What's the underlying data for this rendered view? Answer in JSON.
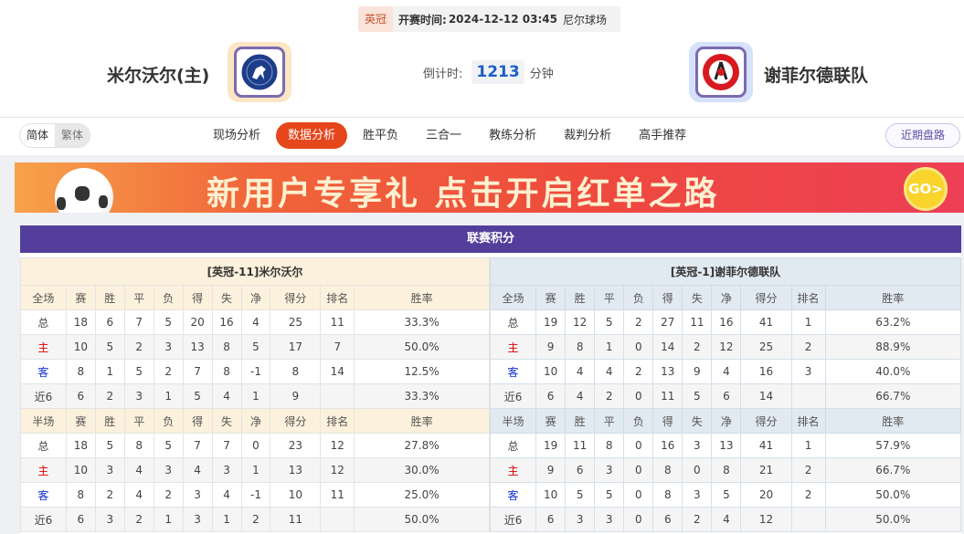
{
  "match": {
    "league": "英冠",
    "kickoff_label": "开赛时间:",
    "kickoff": "2024-12-12 03:45",
    "venue": "尼尔球场"
  },
  "home": {
    "name": "米尔沃尔(主)",
    "logo": "millwall-lion-crest"
  },
  "away": {
    "name": "谢菲尔德联队",
    "logo": "sheffield-united-crest"
  },
  "countdown": {
    "label": "倒计时:",
    "value": "1213",
    "unit": "分钟"
  },
  "lang": {
    "simplified": "简体",
    "traditional": "繁体"
  },
  "tabs": [
    "现场分析",
    "数据分析",
    "胜平负",
    "三合一",
    "教练分析",
    "裁判分析",
    "高手推荐"
  ],
  "active_tab": "数据分析",
  "recent_button": "近期盘路",
  "banner": {
    "text": "新用户专享礼 点击开启红单之路",
    "go": "GO>"
  },
  "colors": {
    "accent": "#e5461c",
    "panel_header": "#533f9b"
  },
  "standings": {
    "title": "联赛积分",
    "columns": [
      "赛",
      "胜",
      "平",
      "负",
      "得",
      "失",
      "净",
      "得分",
      "排名",
      "胜率"
    ],
    "tables": [
      {
        "team_label": "[英冠-11]米尔沃尔",
        "full": {
          "label": "全场",
          "rows": [
            [
              "总",
              "18",
              "6",
              "7",
              "5",
              "20",
              "16",
              "4",
              "25",
              "11",
              "33.3%"
            ],
            [
              "主",
              "10",
              "5",
              "2",
              "3",
              "13",
              "8",
              "5",
              "17",
              "7",
              "50.0%"
            ],
            [
              "客",
              "8",
              "1",
              "5",
              "2",
              "7",
              "8",
              "-1",
              "8",
              "14",
              "12.5%"
            ],
            [
              "近6",
              "6",
              "2",
              "3",
              "1",
              "5",
              "4",
              "1",
              "9",
              "",
              "33.3%"
            ]
          ]
        },
        "half": {
          "label": "半场",
          "rows": [
            [
              "总",
              "18",
              "5",
              "8",
              "5",
              "7",
              "7",
              "0",
              "23",
              "12",
              "27.8%"
            ],
            [
              "主",
              "10",
              "3",
              "4",
              "3",
              "4",
              "3",
              "1",
              "13",
              "12",
              "30.0%"
            ],
            [
              "客",
              "8",
              "2",
              "4",
              "2",
              "3",
              "4",
              "-1",
              "10",
              "11",
              "25.0%"
            ],
            [
              "近6",
              "6",
              "3",
              "2",
              "1",
              "3",
              "1",
              "2",
              "11",
              "",
              "50.0%"
            ]
          ]
        }
      },
      {
        "team_label": "[英冠-1]谢菲尔德联队",
        "full": {
          "label": "全场",
          "rows": [
            [
              "总",
              "19",
              "12",
              "5",
              "2",
              "27",
              "11",
              "16",
              "41",
              "1",
              "63.2%"
            ],
            [
              "主",
              "9",
              "8",
              "1",
              "0",
              "14",
              "2",
              "12",
              "25",
              "2",
              "88.9%"
            ],
            [
              "客",
              "10",
              "4",
              "4",
              "2",
              "13",
              "9",
              "4",
              "16",
              "3",
              "40.0%"
            ],
            [
              "近6",
              "6",
              "4",
              "2",
              "0",
              "11",
              "5",
              "6",
              "14",
              "",
              "66.7%"
            ]
          ]
        },
        "half": {
          "label": "半场",
          "rows": [
            [
              "总",
              "19",
              "11",
              "8",
              "0",
              "16",
              "3",
              "13",
              "41",
              "1",
              "57.9%"
            ],
            [
              "主",
              "9",
              "6",
              "3",
              "0",
              "8",
              "0",
              "8",
              "21",
              "2",
              "66.7%"
            ],
            [
              "客",
              "10",
              "5",
              "5",
              "0",
              "8",
              "3",
              "5",
              "20",
              "2",
              "50.0%"
            ],
            [
              "近6",
              "6",
              "3",
              "3",
              "0",
              "6",
              "2",
              "4",
              "12",
              "",
              "50.0%"
            ]
          ]
        }
      }
    ]
  }
}
